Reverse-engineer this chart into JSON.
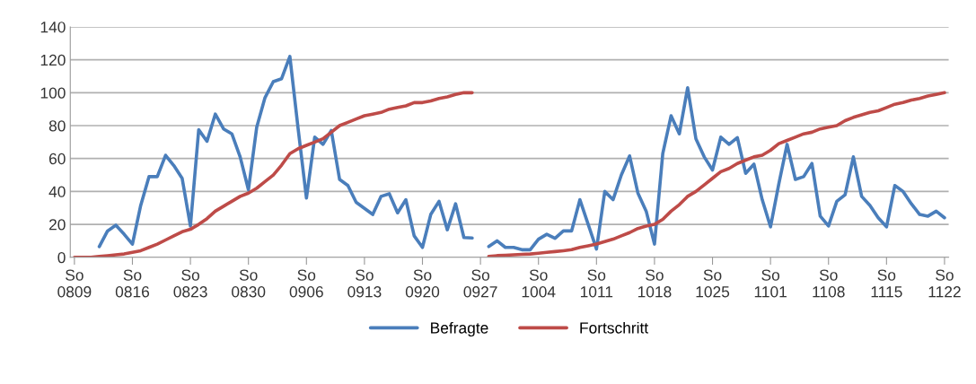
{
  "chart_data": {
    "type": "line",
    "categories": [
      "So\n0809",
      null,
      null,
      null,
      null,
      null,
      null,
      "So\n0816",
      null,
      null,
      null,
      null,
      null,
      null,
      "So\n0823",
      null,
      null,
      null,
      null,
      null,
      null,
      "So\n0830",
      null,
      null,
      null,
      null,
      null,
      null,
      "So\n0906",
      null,
      null,
      null,
      null,
      null,
      null,
      "So\n0913",
      null,
      null,
      null,
      null,
      null,
      null,
      "So\n0920",
      null,
      null,
      null,
      null,
      null,
      null,
      "So\n0927",
      null,
      null,
      null,
      null,
      null,
      null,
      "So\n1004",
      null,
      null,
      null,
      null,
      null,
      null,
      "So\n1011",
      null,
      null,
      null,
      null,
      null,
      null,
      "So\n1018",
      null,
      null,
      null,
      null,
      null,
      null,
      "So\n1025",
      null,
      null,
      null,
      null,
      null,
      null,
      "So\n1101",
      null,
      null,
      null,
      null,
      null,
      null,
      "So\n1108",
      null,
      null,
      null,
      null,
      null,
      null,
      "So\n1115",
      null,
      null,
      null,
      null,
      null,
      null,
      "So\n1122"
    ],
    "series": [
      {
        "name": "Befragte",
        "color": "#4a7ebb",
        "values": [
          null,
          null,
          null,
          6.5,
          16,
          19.5,
          14,
          8,
          31.5,
          49,
          49,
          62,
          55.7,
          48,
          19,
          77.5,
          70.5,
          87,
          78,
          75,
          61,
          41,
          79,
          97,
          106.7,
          108.5,
          122,
          78,
          36,
          73,
          68.6,
          77,
          47.3,
          43.6,
          33.4,
          29.7,
          26,
          37,
          38.6,
          27,
          35,
          13,
          6,
          26,
          34,
          16.7,
          32.5,
          12,
          11.7,
          null,
          6.5,
          10,
          6,
          6,
          4.6,
          4.6,
          11,
          14,
          11.5,
          16,
          16,
          35,
          20,
          5,
          40,
          35,
          50,
          61.6,
          39,
          28,
          8,
          63,
          86,
          75,
          103,
          72,
          61,
          53,
          73,
          68.6,
          72.7,
          51,
          56.6,
          35,
          18.5,
          44.5,
          68.6,
          47.3,
          49,
          57,
          25,
          19,
          34,
          38,
          61,
          37,
          31.5,
          24,
          18.5,
          43.6,
          40,
          32.5,
          26,
          25,
          28,
          24
        ]
      },
      {
        "name": "Fortschritt",
        "color": "#be4b48",
        "values": [
          0,
          0,
          0,
          0.5,
          1,
          1.5,
          2,
          3,
          4,
          6,
          8,
          10.5,
          13,
          15.5,
          17,
          20,
          23.5,
          28,
          31,
          34,
          37,
          39,
          42,
          46,
          50,
          56,
          63,
          66,
          68,
          70,
          72,
          76,
          80,
          82,
          84,
          86,
          87,
          88,
          90,
          91,
          92,
          94,
          94,
          95,
          96.5,
          97.5,
          99,
          100,
          100,
          null,
          0.5,
          1,
          1.2,
          1.5,
          1.8,
          2,
          2.5,
          3,
          3.5,
          4,
          4.6,
          6,
          7,
          8,
          9.5,
          11,
          13,
          15,
          17.5,
          19,
          20,
          23,
          28,
          32,
          37,
          40,
          44,
          48,
          52,
          54,
          57,
          59,
          61,
          62,
          65,
          69,
          71,
          73,
          75,
          76,
          78,
          79,
          80,
          83,
          85,
          86.5,
          88,
          89,
          91,
          93,
          94,
          95.5,
          96.5,
          98,
          99,
          100
        ]
      }
    ],
    "ylim": [
      0,
      140
    ],
    "yticks": [
      0,
      20,
      40,
      60,
      80,
      100,
      120,
      140
    ],
    "grid": "y",
    "legend": "bottom",
    "marker": "none",
    "line_style": "solid"
  }
}
